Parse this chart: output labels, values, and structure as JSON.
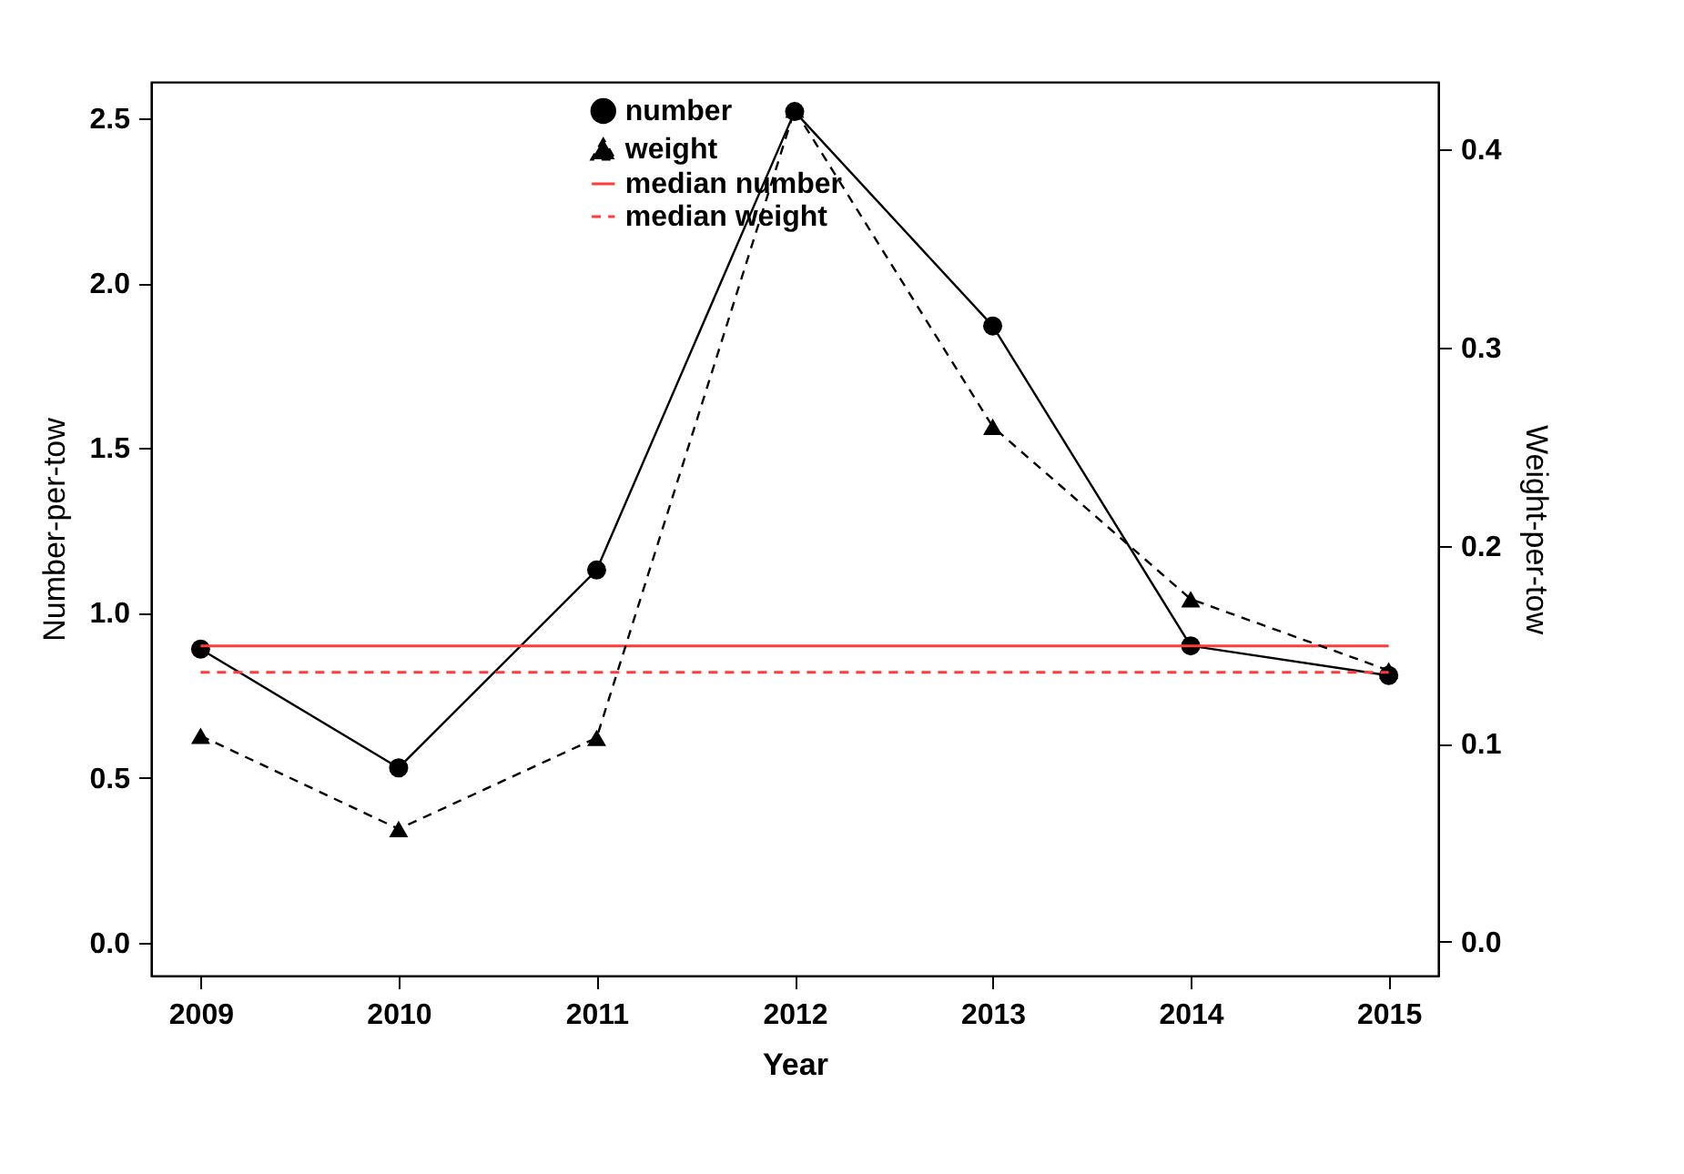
{
  "chart_data": {
    "type": "line",
    "xlabel": "Year",
    "ylabel": "Number-per-tow",
    "y2label": "Weight-per-tow",
    "x": [
      2009,
      2010,
      2011,
      2012,
      2013,
      2014,
      2015
    ],
    "xlim": [
      2008.75,
      2015.25
    ],
    "xticks": [
      2009,
      2010,
      2011,
      2012,
      2013,
      2014,
      2015
    ],
    "ylim": [
      -0.1,
      2.61
    ],
    "yticks": [
      {
        "value": 0,
        "label": "0.0"
      },
      0.5,
      {
        "value": 1,
        "label": "1.0"
      },
      1.5,
      {
        "value": 2,
        "label": "2.0"
      },
      2.5
    ],
    "y2lim": [
      -0.017,
      0.434
    ],
    "y2ticks": [
      {
        "value": 0,
        "label": "0.0"
      },
      0.1,
      0.2,
      0.3,
      0.4
    ],
    "series": [
      {
        "name": "number",
        "color": "#000000",
        "marker": "circle",
        "line_style": "solid",
        "values": [
          0.89,
          0.53,
          1.13,
          2.52,
          1.87,
          0.9,
          0.81
        ]
      },
      {
        "name": "weight",
        "color": "#000000",
        "marker": "triangle",
        "line_style": "dashed",
        "axis": "y2",
        "values": [
          0.104,
          0.057,
          0.103,
          0.42,
          0.26,
          0.173,
          0.137
        ]
      }
    ],
    "ref_lines": [
      {
        "axis": "y",
        "value": 0.9,
        "label": "median number",
        "color": "#ff3b3b",
        "line_style": "solid"
      },
      {
        "axis": "y2",
        "value": 0.136,
        "label": "median weight",
        "color": "#ff3b3b",
        "line_style": "dashed"
      }
    ],
    "legend": "top",
    "grid": false
  }
}
